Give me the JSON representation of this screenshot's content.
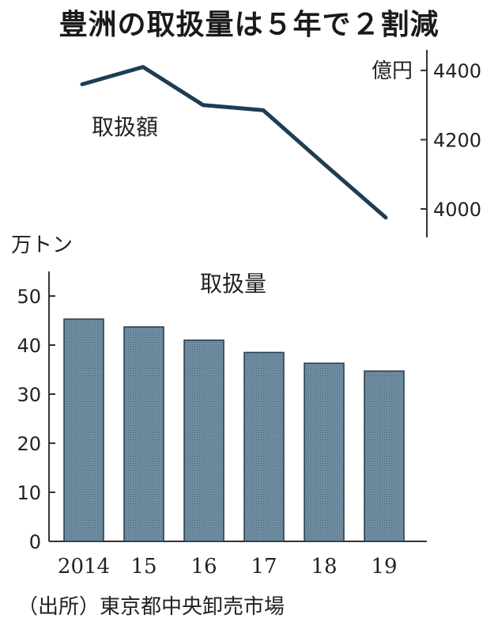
{
  "title": "豊洲の取扱量は５年で２割減",
  "source": "（出所）東京都中央卸売市場",
  "colors": {
    "line": "#1e3d53",
    "bar_fill": "#6f8ca1",
    "bar_stroke": "#243a4c",
    "axis": "#333333"
  },
  "chart_data": [
    {
      "type": "line",
      "label": "取扱額",
      "ylabel": "億円",
      "x": [
        "2014",
        "15",
        "16",
        "17",
        "18",
        "19"
      ],
      "values": [
        4360,
        4410,
        4300,
        4285,
        4130,
        3975
      ],
      "ylim": [
        3920,
        4460
      ],
      "yticks": [
        4000,
        4200,
        4400
      ],
      "y_axis_side": "right",
      "grid": false
    },
    {
      "type": "bar",
      "label": "取扱量",
      "ylabel": "万トン",
      "categories": [
        "2014",
        "15",
        "16",
        "17",
        "18",
        "19"
      ],
      "values": [
        45.3,
        43.7,
        41.0,
        38.5,
        36.3,
        34.7
      ],
      "ylim": [
        0,
        55
      ],
      "yticks": [
        0,
        10,
        20,
        30,
        40,
        50
      ],
      "y_axis_side": "left",
      "grid": false
    }
  ]
}
